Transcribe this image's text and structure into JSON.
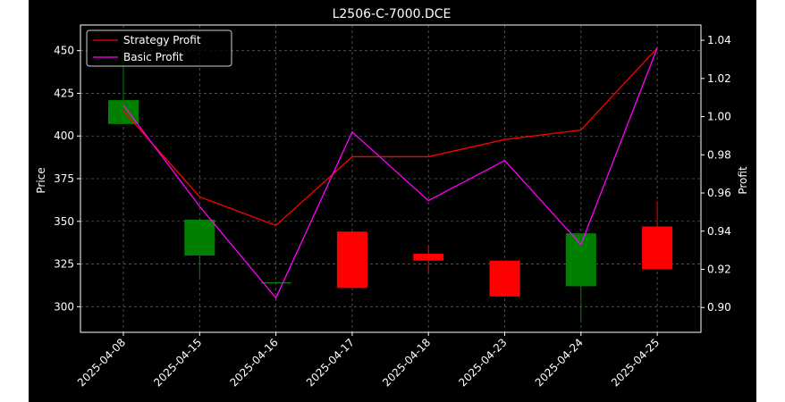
{
  "chart_data": {
    "type": "candlestick",
    "title": "L2506-C-7000.DCE",
    "xlabel": "",
    "ylabel_left": "Price",
    "ylabel_right": "Profit",
    "categories": [
      "2025-04-08",
      "2025-04-15",
      "2025-04-16",
      "2025-04-17",
      "2025-04-18",
      "2025-04-23",
      "2025-04-24",
      "2025-04-25"
    ],
    "ylim_left": [
      285,
      465
    ],
    "ylim_right": [
      0.887,
      1.048
    ],
    "left_ticks": [
      300,
      325,
      350,
      375,
      400,
      425,
      450
    ],
    "right_ticks": [
      "0.90",
      "0.92",
      "0.94",
      "0.96",
      "0.98",
      "1.00",
      "1.02",
      "1.04"
    ],
    "right_tick_values": [
      0.9,
      0.92,
      0.94,
      0.96,
      0.98,
      1.0,
      1.02,
      1.04
    ],
    "grid": true,
    "legend_position": "top-left",
    "candles": [
      {
        "date": "2025-04-08",
        "open": 407,
        "close": 421,
        "high": 450,
        "low": 407
      },
      {
        "date": "2025-04-15",
        "open": 330,
        "close": 351,
        "high": 351,
        "low": 316
      },
      {
        "date": "2025-04-16",
        "open": 314,
        "close": 314,
        "high": 314,
        "low": 314
      },
      {
        "date": "2025-04-17",
        "open": 344,
        "close": 311,
        "high": 344,
        "low": 311
      },
      {
        "date": "2025-04-18",
        "open": 331,
        "close": 327,
        "high": 336,
        "low": 320
      },
      {
        "date": "2025-04-23",
        "open": 327,
        "close": 306,
        "high": 327,
        "low": 306
      },
      {
        "date": "2025-04-24",
        "open": 312,
        "close": 343,
        "high": 343,
        "low": 291
      },
      {
        "date": "2025-04-25",
        "open": 347,
        "close": 322,
        "high": 362,
        "low": 322
      }
    ],
    "series": [
      {
        "name": "Strategy Profit",
        "color": "#ff0000",
        "axis": "right",
        "values": [
          1.003,
          0.958,
          0.943,
          0.979,
          0.979,
          0.988,
          0.993,
          1.036
        ]
      },
      {
        "name": "Basic Profit",
        "color": "#ff00ff",
        "axis": "right",
        "values": [
          1.006,
          0.953,
          0.905,
          0.992,
          0.956,
          0.977,
          0.933,
          1.036
        ]
      }
    ],
    "colors": {
      "up": "#008000",
      "down": "#ff0000",
      "background": "#000000",
      "grid": "#808080",
      "axes": "#ffffff"
    }
  }
}
